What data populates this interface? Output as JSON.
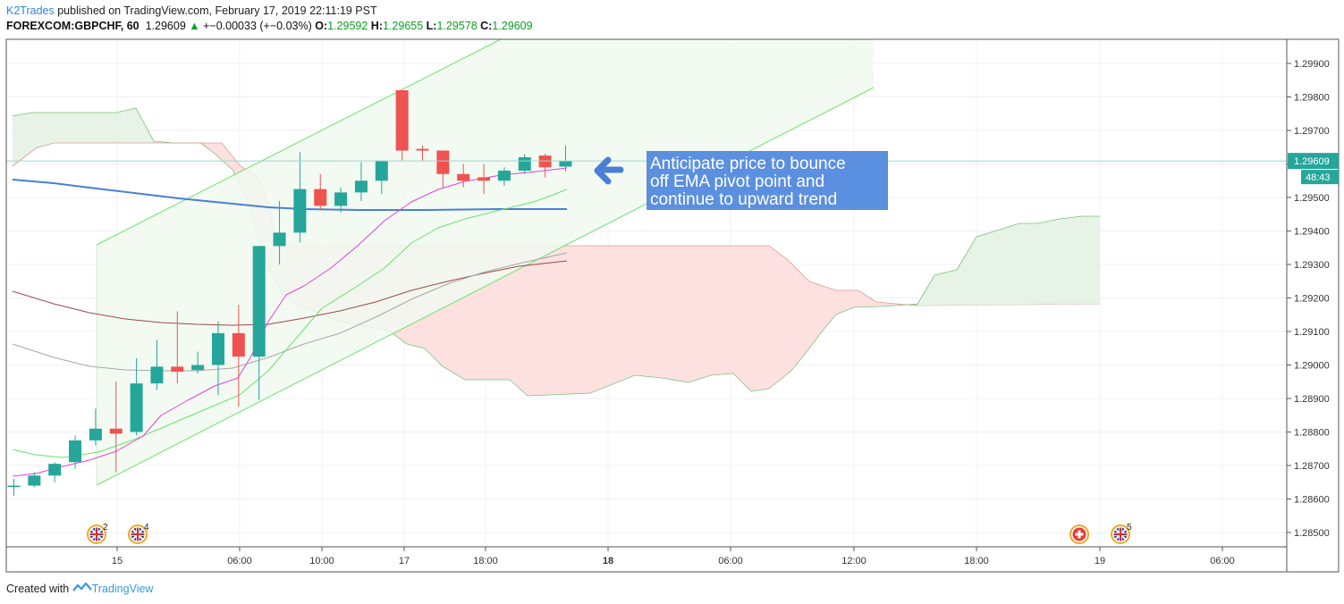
{
  "header": {
    "author": "K2Trades",
    "published_text": "published on TradingView.com, February 17, 2019 22:11:19 PST",
    "symbol": "FOREXCOM:GBPCHF, 60",
    "last": "1.29609",
    "change": "+−0.00033 (+−0.03%)",
    "o_label": "O:",
    "o_value": "1.29592",
    "h_label": "H:",
    "h_value": "1.29655",
    "l_label": "L:",
    "l_value": "1.29578",
    "c_label": "C:",
    "c_value": "1.29609"
  },
  "footer": {
    "created_with": "Created with",
    "brand": "TradingView"
  },
  "annotation": {
    "lines": [
      "Anticipate price to bounce",
      "off EMA pivot point and",
      "continue to upward trend"
    ]
  },
  "price_label": {
    "price": "1.29609",
    "countdown": "48:43"
  },
  "colors": {
    "up": "#26a69a",
    "down": "#ef5350",
    "ema_blue": "#4a7fd4",
    "ema_brown": "#9e4a4a",
    "ema_gray": "#a8a8a8",
    "magenta": "#e040e0",
    "green_line": "#6be36b",
    "cloud_green": "#e6f3e6",
    "cloud_red": "#fde0e0",
    "annotation_bg": "#5b8fe0"
  },
  "chart_data": {
    "type": "candlestick",
    "y_ticks": [
      "1.29900",
      "1.29800",
      "1.29700",
      "1.29600",
      "1.29500",
      "1.29400",
      "1.29300",
      "1.29200",
      "1.29100",
      "1.29000",
      "1.28900",
      "1.28800",
      "1.28700",
      "1.28600",
      "1.28500"
    ],
    "x_ticks": [
      "15",
      "06:00",
      "10:00",
      "17",
      "18:00",
      "18",
      "06:00",
      "12:00",
      "18:00",
      "19",
      "06:00"
    ],
    "ylim": [
      1.2845,
      1.2995
    ],
    "candles": [
      {
        "o": 1.2864,
        "h": 1.2866,
        "l": 1.2861,
        "c": 1.2864
      },
      {
        "o": 1.2864,
        "h": 1.2868,
        "l": 1.28635,
        "c": 1.2867
      },
      {
        "o": 1.2867,
        "h": 1.2871,
        "l": 1.2865,
        "c": 1.28705
      },
      {
        "o": 1.2871,
        "h": 1.2879,
        "l": 1.2869,
        "c": 1.28775
      },
      {
        "o": 1.28775,
        "h": 1.2887,
        "l": 1.2876,
        "c": 1.2881
      },
      {
        "o": 1.2881,
        "h": 1.2895,
        "l": 1.2868,
        "c": 1.28795
      },
      {
        "o": 1.288,
        "h": 1.2902,
        "l": 1.2879,
        "c": 1.28945
      },
      {
        "o": 1.28945,
        "h": 1.29075,
        "l": 1.28925,
        "c": 1.28995
      },
      {
        "o": 1.28995,
        "h": 1.2916,
        "l": 1.28945,
        "c": 1.2898
      },
      {
        "o": 1.28985,
        "h": 1.2904,
        "l": 1.28975,
        "c": 1.29
      },
      {
        "o": 1.29,
        "h": 1.2913,
        "l": 1.2891,
        "c": 1.29095
      },
      {
        "o": 1.29095,
        "h": 1.2918,
        "l": 1.28875,
        "c": 1.29025
      },
      {
        "o": 1.29025,
        "h": 1.29355,
        "l": 1.28895,
        "c": 1.29355
      },
      {
        "o": 1.29355,
        "h": 1.2949,
        "l": 1.293,
        "c": 1.29395
      },
      {
        "o": 1.29395,
        "h": 1.29635,
        "l": 1.29365,
        "c": 1.29525
      },
      {
        "o": 1.29525,
        "h": 1.2957,
        "l": 1.29465,
        "c": 1.29475
      },
      {
        "o": 1.29475,
        "h": 1.2953,
        "l": 1.29455,
        "c": 1.29515
      },
      {
        "o": 1.29515,
        "h": 1.29605,
        "l": 1.2949,
        "c": 1.2955
      },
      {
        "o": 1.2955,
        "h": 1.2961,
        "l": 1.2951,
        "c": 1.2961
      },
      {
        "o": 1.2982,
        "h": 1.2982,
        "l": 1.2961,
        "c": 1.2964
      },
      {
        "o": 1.29645,
        "h": 1.29655,
        "l": 1.2961,
        "c": 1.2964
      },
      {
        "o": 1.2964,
        "h": 1.2964,
        "l": 1.2953,
        "c": 1.2957
      },
      {
        "o": 1.2957,
        "h": 1.296,
        "l": 1.2953,
        "c": 1.2955
      },
      {
        "o": 1.2956,
        "h": 1.296,
        "l": 1.2951,
        "c": 1.2955
      },
      {
        "o": 1.2955,
        "h": 1.2959,
        "l": 1.29535,
        "c": 1.2958
      },
      {
        "o": 1.2958,
        "h": 1.2963,
        "l": 1.2957,
        "c": 1.2962
      },
      {
        "o": 1.29625,
        "h": 1.2963,
        "l": 1.2956,
        "c": 1.2959
      },
      {
        "o": 1.29592,
        "h": 1.29655,
        "l": 1.29578,
        "c": 1.29609
      }
    ],
    "events": [
      {
        "label": "2",
        "icon": "uk-flag-icon"
      },
      {
        "label": "4",
        "icon": "uk-flag-icon"
      },
      {
        "label": "",
        "icon": "swiss-flag-icon"
      },
      {
        "label": "5",
        "icon": "uk-flag-icon"
      }
    ]
  }
}
